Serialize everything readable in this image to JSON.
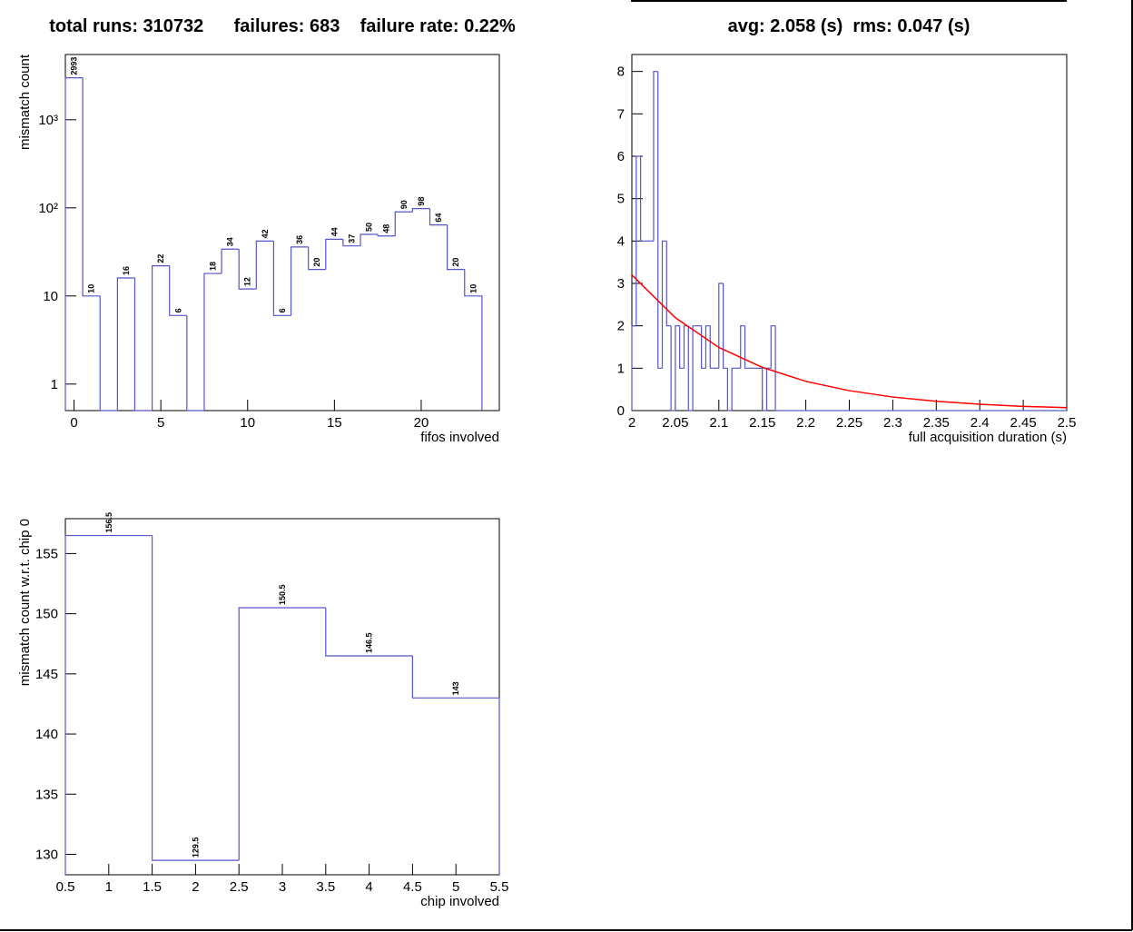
{
  "chart_data": [
    {
      "type": "histogram",
      "title": "total runs: 310732      failures: 683    failure rate: 0.22%",
      "xlabel": "fifos involved",
      "ylabel": "mismatch count",
      "color": "#5555cc",
      "log_y": true,
      "show_values": true,
      "bins": [
        -0.5,
        0.5,
        1.5,
        2.5,
        3.5,
        4.5,
        5.5,
        6.5,
        7.5,
        8.5,
        9.5,
        10.5,
        11.5,
        12.5,
        13.5,
        14.5,
        15.5,
        16.5,
        17.5,
        18.5,
        19.5,
        20.5,
        21.5,
        22.5,
        23.5
      ],
      "values": [
        2993,
        10,
        0,
        16,
        0,
        22,
        6,
        0,
        18,
        34,
        12,
        42,
        6,
        36,
        20,
        44,
        37,
        50,
        48,
        90,
        98,
        64,
        20,
        10
      ],
      "xlim": [
        -0.5,
        24.5
      ],
      "xticks": [
        0,
        5,
        10,
        15,
        20
      ],
      "ylim": [
        0.5,
        5500
      ],
      "yticks": [
        1,
        10,
        {
          "value": 100,
          "label": "10²"
        },
        {
          "value": 1000,
          "label": "10³"
        }
      ]
    },
    {
      "type": "histogram",
      "title": "avg: 2.058 (s)  rms: 0.047 (s)",
      "xlabel": "full acquisition duration (s)",
      "color": "#5555cc",
      "log_y": false,
      "show_values": false,
      "bins": [
        2,
        2.005,
        2.01,
        2.015,
        2.02,
        2.025,
        2.03,
        2.035,
        2.04,
        2.045,
        2.05,
        2.055,
        2.06,
        2.065,
        2.07,
        2.075,
        2.08,
        2.085,
        2.09,
        2.095,
        2.1,
        2.105,
        2.11,
        2.115,
        2.12,
        2.125,
        2.13,
        2.135,
        2.14,
        2.145,
        2.15,
        2.155,
        2.16,
        2.165,
        2.17,
        2.175,
        2.18,
        2.185,
        2.19,
        2.195,
        2.2,
        2.205,
        2.21,
        2.215,
        2.22,
        2.225,
        2.23,
        2.235,
        2.24,
        2.245,
        2.25,
        2.255,
        2.26,
        2.265,
        2.27,
        2.275,
        2.28,
        2.285,
        2.29,
        2.295,
        2.3,
        2.305,
        2.31,
        2.315,
        2.32,
        2.325,
        2.33,
        2.335,
        2.34,
        2.345,
        2.35,
        2.355,
        2.36,
        2.365,
        2.37,
        2.375,
        2.38,
        2.385,
        2.39,
        2.395,
        2.4,
        2.405,
        2.41,
        2.415,
        2.42,
        2.425,
        2.43,
        2.435,
        2.44,
        2.445,
        2.45,
        2.455,
        2.46,
        2.465,
        2.47,
        2.475,
        2.48,
        2.485,
        2.49,
        2.495,
        2.5
      ],
      "values": [
        2,
        6,
        4,
        4,
        4,
        8,
        1,
        4,
        2,
        0,
        2,
        1,
        2,
        0,
        2,
        2,
        1,
        2,
        1,
        1,
        3,
        1,
        0,
        1,
        1,
        2,
        1,
        1,
        1,
        1,
        0,
        1,
        2,
        0,
        0,
        0,
        0,
        0,
        0,
        0,
        0,
        0,
        0,
        0,
        0,
        0,
        0,
        0,
        0,
        0,
        0,
        0,
        0,
        0,
        0,
        0,
        0,
        0,
        0,
        0,
        0,
        0,
        0,
        0,
        0,
        0,
        0,
        0,
        0,
        0,
        0,
        0,
        0,
        0,
        0,
        0,
        0,
        0,
        0,
        0,
        0,
        0,
        0,
        0,
        0,
        0,
        0,
        0,
        0,
        0,
        0,
        0,
        0,
        0,
        0,
        0,
        0,
        0,
        0,
        0
      ],
      "fit": {
        "color": "#ff0000",
        "x": [
          2,
          2.05,
          2.1,
          2.15,
          2.2,
          2.25,
          2.3,
          2.35,
          2.4,
          2.45,
          2.5
        ],
        "values": [
          3.2,
          2.19,
          1.49,
          1.02,
          0.69,
          0.47,
          0.32,
          0.22,
          0.15,
          0.1,
          0.07
        ]
      },
      "xlim": [
        2,
        2.5
      ],
      "xticks": [
        2,
        2.05,
        2.1,
        2.15,
        2.2,
        2.25,
        2.3,
        2.35,
        2.4,
        2.45,
        2.5
      ],
      "ylim": [
        0,
        8.4
      ],
      "yticks": [
        0,
        1,
        2,
        3,
        4,
        5,
        6,
        7,
        8
      ]
    },
    {
      "type": "histogram",
      "xlabel": "chip involved",
      "ylabel": "mismatch count w.r.t. chip 0",
      "color": "#5555cc",
      "log_y": false,
      "show_values": true,
      "bins": [
        0.5,
        1.5,
        2.5,
        3.5,
        4.5,
        5.5
      ],
      "values": [
        156.5,
        129.5,
        150.5,
        146.5,
        143
      ],
      "xlim": [
        0.5,
        5.5
      ],
      "xticks": [
        0.5,
        1,
        1.5,
        2,
        2.5,
        3,
        3.5,
        4,
        4.5,
        5,
        5.5
      ],
      "ylim": [
        128.3,
        157.9
      ],
      "yticks": [
        130,
        135,
        140,
        145,
        150,
        155
      ]
    }
  ]
}
